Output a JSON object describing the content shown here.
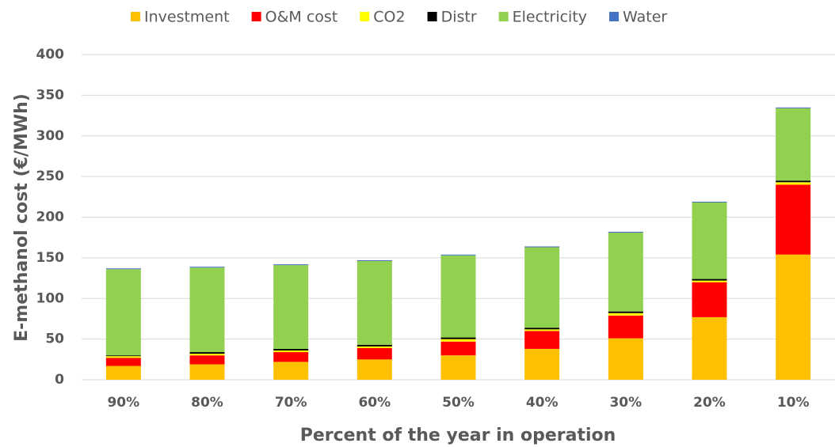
{
  "chart_data": {
    "type": "stacked_bar",
    "x_label": "Percent of the year in operation",
    "y_label": "E-methanol cost (€/MWh)",
    "categories": [
      "90%",
      "80%",
      "70%",
      "60%",
      "50%",
      "40%",
      "30%",
      "20%",
      "10%"
    ],
    "series": [
      {
        "name": "Investment",
        "color": "#ffc000",
        "values": [
          17,
          19,
          22,
          25,
          30,
          38,
          51,
          77,
          154
        ]
      },
      {
        "name": "O&M cost",
        "color": "#ff0000",
        "values": [
          10,
          11,
          12,
          14,
          17,
          22,
          28,
          43,
          86
        ]
      },
      {
        "name": "CO2",
        "color": "#ffff00",
        "values": [
          2,
          2,
          2,
          2,
          3,
          2,
          3,
          2,
          3
        ]
      },
      {
        "name": "Distr",
        "color": "#000000",
        "values": [
          1,
          2,
          2,
          2,
          2,
          2,
          2,
          2,
          2
        ]
      },
      {
        "name": "Electricity",
        "color": "#92d050",
        "values": [
          106,
          104,
          103,
          103,
          101,
          99,
          97,
          94,
          89
        ]
      },
      {
        "name": "Water",
        "color": "#4472c4",
        "values": [
          1,
          1,
          1,
          1,
          1,
          1,
          1,
          1,
          1
        ]
      }
    ],
    "ylim": [
      0,
      400
    ],
    "yticks": [
      0,
      50,
      100,
      150,
      200,
      250,
      300,
      350,
      400
    ],
    "grid": true
  }
}
